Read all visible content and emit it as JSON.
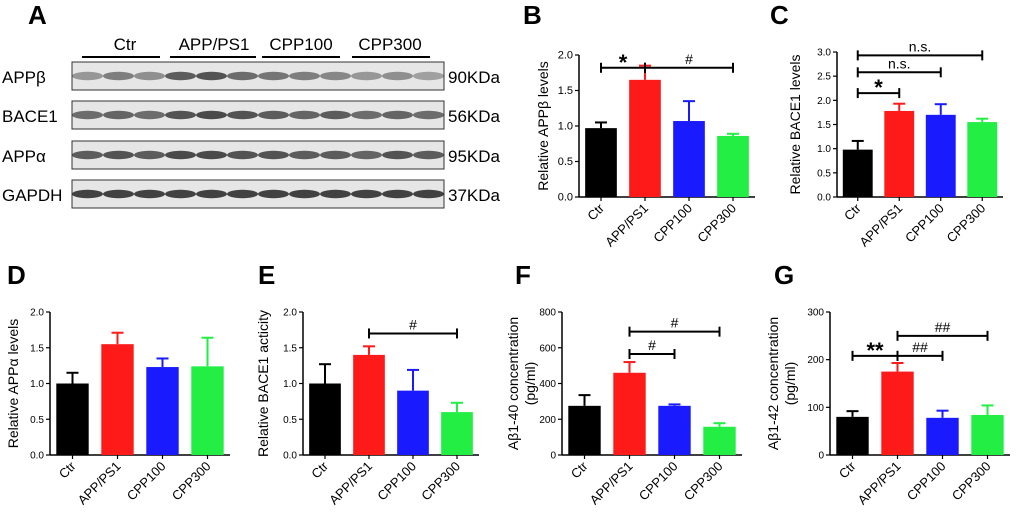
{
  "figure": {
    "panel_letters": [
      "A",
      "B",
      "C",
      "D",
      "E",
      "F",
      "G"
    ]
  },
  "blot": {
    "groups": [
      "Ctr",
      "APP/PS1",
      "CPP100",
      "CPP300"
    ],
    "bands": [
      {
        "name": "APPβ",
        "size": "90KDa"
      },
      {
        "name": "BACE1",
        "size": "56KDa"
      },
      {
        "name": "APPα",
        "size": "95KDa"
      },
      {
        "name": "GAPDH",
        "size": "37KDa"
      }
    ]
  },
  "colors": {
    "Ctr": "#000000",
    "APP/PS1": "#ff1a1a",
    "CPP100": "#1a1aff",
    "CPP300": "#22ee44"
  },
  "chart_data": [
    {
      "panel": "B",
      "type": "bar",
      "categories": [
        "Ctr",
        "APP/PS1",
        "CPP100",
        "CPP300"
      ],
      "values": [
        0.97,
        1.65,
        1.07,
        0.86
      ],
      "errors": [
        0.08,
        0.2,
        0.28,
        0.03
      ],
      "ylabel": "Relative APPβ levels",
      "ylim": [
        0,
        2.0
      ],
      "yticks": [
        "0.0",
        "0.5",
        "1.0",
        "1.5",
        "2.0"
      ],
      "annotations": [
        {
          "from": 0,
          "to": 1,
          "y": 1.82,
          "label": "*"
        },
        {
          "from": 1,
          "to": 3,
          "y": 1.82,
          "label": "#"
        }
      ]
    },
    {
      "panel": "C",
      "type": "bar",
      "categories": [
        "Ctr",
        "APP/PS1",
        "CPP100",
        "CPP300"
      ],
      "values": [
        0.98,
        1.78,
        1.7,
        1.55
      ],
      "errors": [
        0.18,
        0.15,
        0.22,
        0.07
      ],
      "ylabel": "Relative BACE1 levels",
      "ylim": [
        0,
        3.0
      ],
      "yticks": [
        "0.0",
        "0.5",
        "1.0",
        "1.5",
        "2.0",
        "2.5",
        "3.0"
      ],
      "annotations": [
        {
          "from": 0,
          "to": 1,
          "y": 2.15,
          "label": "*"
        },
        {
          "from": 0,
          "to": 2,
          "y": 2.58,
          "label": "n.s."
        },
        {
          "from": 0,
          "to": 3,
          "y": 2.93,
          "label": "n.s."
        }
      ]
    },
    {
      "panel": "D",
      "type": "bar",
      "categories": [
        "Ctr",
        "APP/PS1",
        "CPP100",
        "CPP300"
      ],
      "values": [
        1.0,
        1.55,
        1.23,
        1.24
      ],
      "errors": [
        0.15,
        0.16,
        0.12,
        0.4
      ],
      "ylabel": "Relative APPα levels",
      "ylim": [
        0,
        2.0
      ],
      "yticks": [
        "0.0",
        "0.5",
        "1.0",
        "1.5",
        "2.0"
      ],
      "annotations": []
    },
    {
      "panel": "E",
      "type": "bar",
      "categories": [
        "Ctr",
        "APP/PS1",
        "CPP100",
        "CPP300"
      ],
      "values": [
        1.0,
        1.4,
        0.9,
        0.6
      ],
      "errors": [
        0.27,
        0.12,
        0.29,
        0.13
      ],
      "ylabel": "Relative BACE1 acticity",
      "ylim": [
        0,
        2.0
      ],
      "yticks": [
        "0.0",
        "0.5",
        "1.0",
        "1.5",
        "2.0"
      ],
      "annotations": [
        {
          "from": 1,
          "to": 3,
          "y": 1.7,
          "label": "#"
        }
      ]
    },
    {
      "panel": "F",
      "type": "bar",
      "categories": [
        "Ctr",
        "APP/PS1",
        "CPP100",
        "CPP300"
      ],
      "values": [
        275,
        460,
        275,
        158
      ],
      "errors": [
        60,
        60,
        8,
        20
      ],
      "ylabel": "Aβ1-40 concentration (pg/ml)",
      "ylim": [
        0,
        800
      ],
      "yticks": [
        "0",
        "200",
        "400",
        "600",
        "800"
      ],
      "annotations": [
        {
          "from": 1,
          "to": 2,
          "y": 565,
          "label": "#"
        },
        {
          "from": 1,
          "to": 3,
          "y": 690,
          "label": "#"
        }
      ]
    },
    {
      "panel": "G",
      "type": "bar",
      "categories": [
        "Ctr",
        "APP/PS1",
        "CPP100",
        "CPP300"
      ],
      "values": [
        80,
        175,
        78,
        84
      ],
      "errors": [
        12,
        18,
        15,
        20
      ],
      "ylabel": "Aβ1-42 concentration (pg/ml)",
      "ylim": [
        0,
        300
      ],
      "yticks": [
        "0",
        "100",
        "200",
        "300"
      ],
      "annotations": [
        {
          "from": 0,
          "to": 1,
          "y": 208,
          "label": "**"
        },
        {
          "from": 1,
          "to": 2,
          "y": 208,
          "label": "##"
        },
        {
          "from": 1,
          "to": 3,
          "y": 250,
          "label": "##"
        }
      ]
    }
  ]
}
